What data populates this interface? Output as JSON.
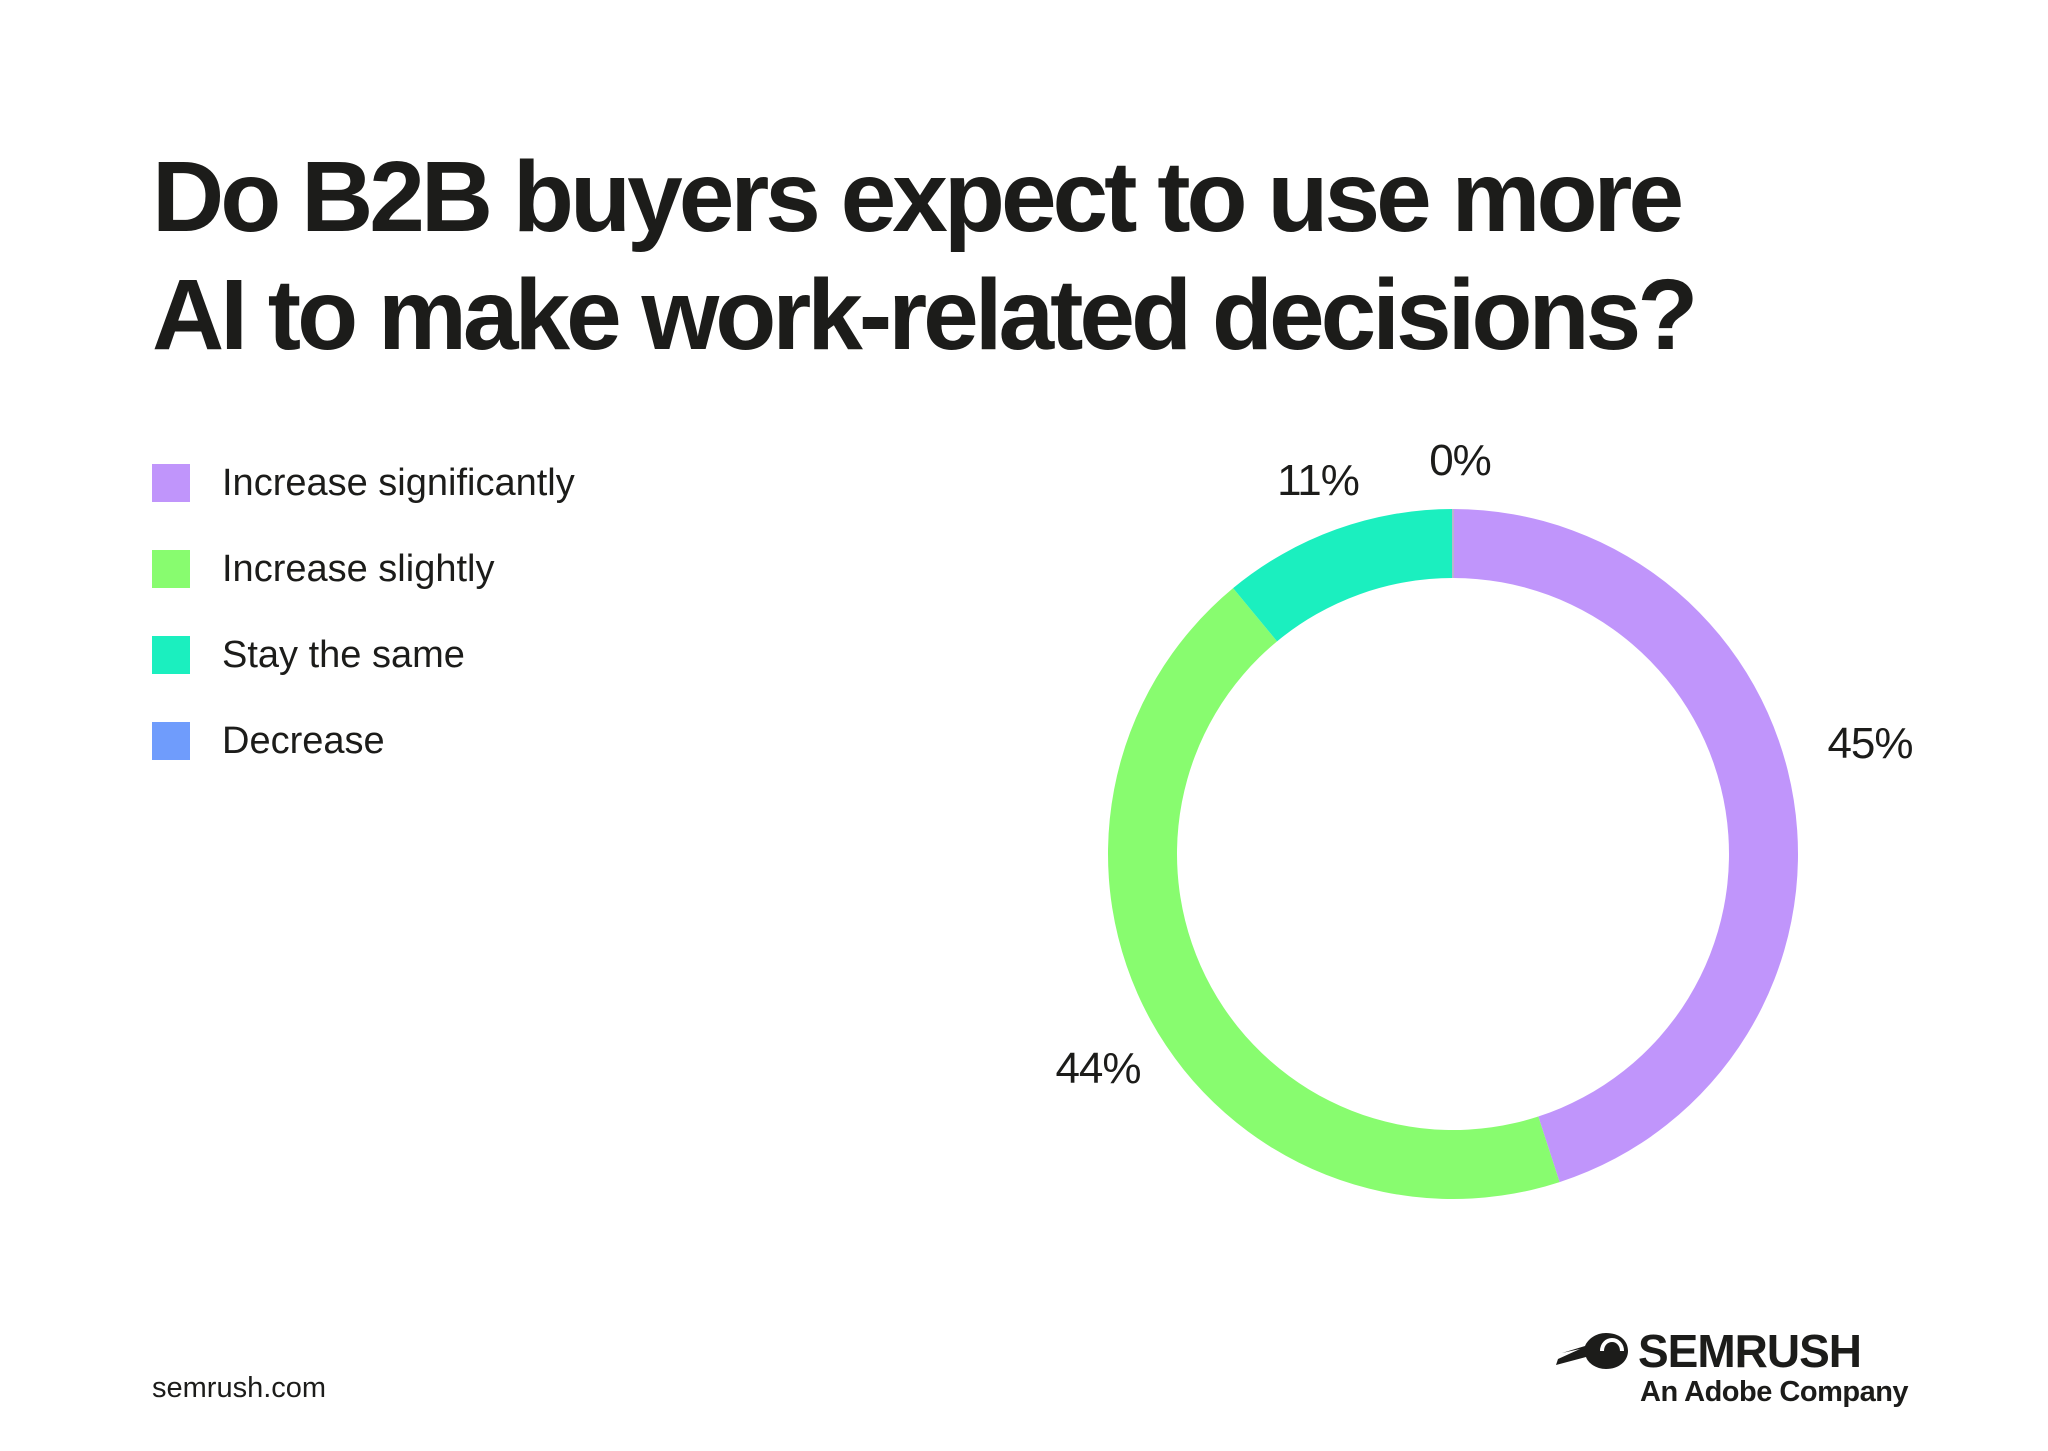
{
  "chart_data": {
    "type": "pie",
    "title": "Do B2B buyers expect to use more AI to make work-related decisions?",
    "title_lines": [
      "Do B2B buyers expect to use more",
      "AI to make work-related decisions?"
    ],
    "categories": [
      "Increase significantly",
      "Increase slightly",
      "Stay the same",
      "Decrease"
    ],
    "values": [
      45,
      44,
      11,
      0
    ],
    "data_labels": [
      "45%",
      "44%",
      "11%",
      "0%"
    ],
    "colors": [
      "#C095FB",
      "#88FC6F",
      "#1BEFBF",
      "#6F9CFC"
    ],
    "legend_position": "left",
    "style": "donut"
  },
  "footer": {
    "url": "semrush.com",
    "brand_name": "SEMRUSH",
    "brand_sub": "An Adobe Company",
    "brand_icon": "semrush-fireball-icon"
  }
}
